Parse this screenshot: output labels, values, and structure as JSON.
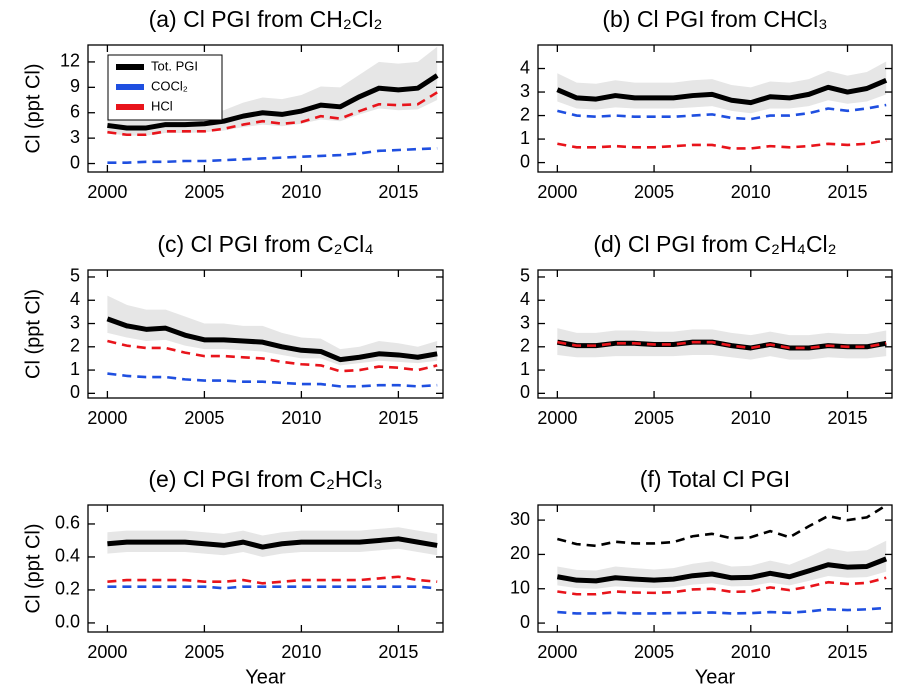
{
  "chart_data": [
    {
      "type": "line",
      "title": "(a) Cl PGI from CH₂Cl₂",
      "ylabel": "Cl (ppt Cl)",
      "legend": "upper left",
      "x": [
        2000,
        2001,
        2002,
        2003,
        2004,
        2005,
        2006,
        2007,
        2008,
        2009,
        2010,
        2011,
        2012,
        2013,
        2014,
        2015,
        2016,
        2017
      ],
      "xlim": [
        1999,
        2017.3
      ],
      "xticks": [
        2000,
        2005,
        2010,
        2015
      ],
      "ylim": [
        -1,
        14
      ],
      "yticks": [
        0,
        3,
        6,
        9,
        12
      ],
      "band": {
        "color": "#e6e6e6",
        "lower": [
          3.6,
          3.3,
          3.3,
          3.6,
          3.6,
          3.7,
          3.9,
          4.3,
          4.6,
          4.4,
          4.7,
          5.2,
          5.0,
          5.8,
          6.5,
          6.3,
          6.4,
          7.5
        ],
        "upper": [
          5.6,
          5.2,
          5.3,
          5.8,
          5.8,
          6.0,
          6.3,
          7.2,
          7.8,
          7.6,
          8.1,
          9.1,
          9.0,
          10.5,
          12.0,
          11.8,
          12.0,
          13.8
        ]
      },
      "series": [
        {
          "name": "Tot. PGI",
          "color": "#000000",
          "linestyle": "solid",
          "values": [
            4.5,
            4.2,
            4.2,
            4.6,
            4.6,
            4.7,
            5.0,
            5.6,
            6.0,
            5.8,
            6.2,
            6.9,
            6.7,
            7.9,
            8.9,
            8.7,
            8.9,
            10.4
          ]
        },
        {
          "name": "COCl₂",
          "color": "#1f4fe0",
          "linestyle": "dashed",
          "values": [
            0.1,
            0.1,
            0.2,
            0.2,
            0.3,
            0.3,
            0.4,
            0.5,
            0.6,
            0.7,
            0.8,
            0.9,
            1.0,
            1.2,
            1.5,
            1.6,
            1.7,
            1.8
          ]
        },
        {
          "name": "HCl",
          "color": "#e8141b",
          "linestyle": "dashed",
          "values": [
            3.7,
            3.4,
            3.4,
            3.8,
            3.8,
            3.8,
            4.1,
            4.6,
            5.0,
            4.7,
            4.9,
            5.6,
            5.3,
            6.2,
            7.0,
            6.9,
            7.0,
            8.4
          ]
        }
      ]
    },
    {
      "type": "line",
      "title": "(b) Cl PGI from CHCl₃",
      "x": [
        2000,
        2001,
        2002,
        2003,
        2004,
        2005,
        2006,
        2007,
        2008,
        2009,
        2010,
        2011,
        2012,
        2013,
        2014,
        2015,
        2016,
        2017
      ],
      "xlim": [
        1999,
        2017.3
      ],
      "xticks": [
        2000,
        2005,
        2010,
        2015
      ],
      "ylim": [
        -0.4,
        5
      ],
      "yticks": [
        0,
        1,
        2,
        3,
        4
      ],
      "band": {
        "color": "#e6e6e6",
        "lower": [
          2.6,
          2.3,
          2.25,
          2.35,
          2.3,
          2.3,
          2.3,
          2.35,
          2.4,
          2.2,
          2.1,
          2.3,
          2.3,
          2.4,
          2.65,
          2.5,
          2.6,
          2.9
        ],
        "upper": [
          3.8,
          3.4,
          3.35,
          3.5,
          3.4,
          3.4,
          3.4,
          3.5,
          3.55,
          3.3,
          3.2,
          3.45,
          3.4,
          3.55,
          3.9,
          3.7,
          3.85,
          4.3
        ]
      },
      "series": [
        {
          "color": "#000000",
          "linestyle": "solid",
          "values": [
            3.1,
            2.75,
            2.7,
            2.85,
            2.75,
            2.75,
            2.75,
            2.85,
            2.9,
            2.65,
            2.55,
            2.8,
            2.75,
            2.9,
            3.2,
            3.0,
            3.15,
            3.5
          ]
        },
        {
          "color": "#1f4fe0",
          "linestyle": "dashed",
          "values": [
            2.2,
            2.0,
            1.95,
            2.0,
            1.95,
            1.95,
            1.95,
            2.0,
            2.05,
            1.9,
            1.85,
            2.0,
            2.0,
            2.1,
            2.3,
            2.2,
            2.3,
            2.45
          ]
        },
        {
          "color": "#e8141b",
          "linestyle": "dashed",
          "values": [
            0.8,
            0.65,
            0.65,
            0.7,
            0.65,
            0.65,
            0.7,
            0.75,
            0.75,
            0.6,
            0.6,
            0.7,
            0.65,
            0.7,
            0.8,
            0.75,
            0.8,
            0.95
          ]
        }
      ]
    },
    {
      "type": "line",
      "title": "(c) Cl PGI from C₂Cl₄",
      "ylabel": "Cl (ppt Cl)",
      "x": [
        2000,
        2001,
        2002,
        2003,
        2004,
        2005,
        2006,
        2007,
        2008,
        2009,
        2010,
        2011,
        2012,
        2013,
        2014,
        2015,
        2016,
        2017
      ],
      "xlim": [
        1999,
        2017.3
      ],
      "xticks": [
        2000,
        2005,
        2010,
        2015
      ],
      "ylim": [
        -0.2,
        5.3
      ],
      "yticks": [
        0,
        1,
        2,
        3,
        4,
        5
      ],
      "band": {
        "color": "#e6e6e6",
        "lower": [
          2.6,
          2.4,
          2.25,
          2.3,
          2.05,
          1.9,
          1.9,
          1.85,
          1.8,
          1.65,
          1.5,
          1.5,
          1.2,
          1.3,
          1.4,
          1.35,
          1.3,
          1.4
        ],
        "upper": [
          4.2,
          3.8,
          3.6,
          3.6,
          3.3,
          3.0,
          3.0,
          2.9,
          2.9,
          2.6,
          2.4,
          2.35,
          1.9,
          2.0,
          2.25,
          2.15,
          2.0,
          2.25
        ]
      },
      "series": [
        {
          "color": "#000000",
          "linestyle": "solid",
          "values": [
            3.2,
            2.9,
            2.75,
            2.8,
            2.5,
            2.3,
            2.3,
            2.25,
            2.2,
            2.0,
            1.85,
            1.8,
            1.45,
            1.55,
            1.7,
            1.65,
            1.55,
            1.7
          ]
        },
        {
          "color": "#1f4fe0",
          "linestyle": "dashed",
          "values": [
            0.85,
            0.75,
            0.7,
            0.7,
            0.6,
            0.55,
            0.55,
            0.5,
            0.5,
            0.45,
            0.4,
            0.4,
            0.3,
            0.3,
            0.35,
            0.35,
            0.3,
            0.35
          ]
        },
        {
          "color": "#e8141b",
          "linestyle": "dashed",
          "values": [
            2.25,
            2.05,
            1.95,
            1.95,
            1.75,
            1.6,
            1.6,
            1.55,
            1.5,
            1.35,
            1.25,
            1.2,
            0.95,
            1.0,
            1.15,
            1.1,
            1.0,
            1.2
          ]
        }
      ]
    },
    {
      "type": "line",
      "title": "(d) Cl PGI from C₂H₄Cl₂",
      "x": [
        2000,
        2001,
        2002,
        2003,
        2004,
        2005,
        2006,
        2007,
        2008,
        2009,
        2010,
        2011,
        2012,
        2013,
        2014,
        2015,
        2016,
        2017
      ],
      "xlim": [
        1999,
        2017.3
      ],
      "xticks": [
        2000,
        2005,
        2010,
        2015
      ],
      "ylim": [
        -0.2,
        5.3
      ],
      "yticks": [
        0,
        1,
        2,
        3,
        4,
        5
      ],
      "band": {
        "color": "#e6e6e6",
        "lower": [
          1.65,
          1.55,
          1.55,
          1.6,
          1.6,
          1.6,
          1.6,
          1.65,
          1.65,
          1.55,
          1.45,
          1.6,
          1.45,
          1.45,
          1.55,
          1.5,
          1.5,
          1.6
        ],
        "upper": [
          2.8,
          2.6,
          2.6,
          2.7,
          2.7,
          2.65,
          2.65,
          2.75,
          2.75,
          2.6,
          2.5,
          2.65,
          2.5,
          2.5,
          2.6,
          2.55,
          2.55,
          2.7
        ]
      },
      "series": [
        {
          "color": "#000000",
          "linestyle": "solid",
          "values": [
            2.2,
            2.05,
            2.05,
            2.15,
            2.15,
            2.1,
            2.1,
            2.2,
            2.2,
            2.05,
            1.95,
            2.1,
            1.95,
            1.95,
            2.05,
            2.0,
            2.0,
            2.15
          ]
        },
        {
          "color": "#e8141b",
          "linestyle": "dashed",
          "values": [
            2.2,
            2.05,
            2.05,
            2.15,
            2.15,
            2.1,
            2.1,
            2.2,
            2.2,
            2.05,
            1.95,
            2.1,
            1.95,
            1.95,
            2.05,
            2.0,
            2.0,
            2.15
          ]
        }
      ]
    },
    {
      "type": "line",
      "title": "(e) Cl PGI from C₂HCl₃",
      "ylabel": "Cl (ppt Cl)",
      "xlabel": "Year",
      "x": [
        2000,
        2001,
        2002,
        2003,
        2004,
        2005,
        2006,
        2007,
        2008,
        2009,
        2010,
        2011,
        2012,
        2013,
        2014,
        2015,
        2016,
        2017
      ],
      "xlim": [
        1999,
        2017.3
      ],
      "xticks": [
        2000,
        2005,
        2010,
        2015
      ],
      "ylim": [
        -0.055,
        0.715
      ],
      "yticks": [
        {
          "value": 0,
          "label": "0.0"
        },
        0.2,
        0.4,
        0.6
      ],
      "band": {
        "color": "#e6e6e6",
        "lower": [
          0.42,
          0.43,
          0.43,
          0.43,
          0.43,
          0.42,
          0.41,
          0.43,
          0.4,
          0.42,
          0.43,
          0.43,
          0.43,
          0.43,
          0.44,
          0.45,
          0.43,
          0.41
        ],
        "upper": [
          0.55,
          0.56,
          0.56,
          0.56,
          0.56,
          0.55,
          0.54,
          0.56,
          0.53,
          0.55,
          0.56,
          0.56,
          0.56,
          0.56,
          0.57,
          0.58,
          0.56,
          0.54
        ]
      },
      "series": [
        {
          "color": "#000000",
          "linestyle": "solid",
          "values": [
            0.48,
            0.49,
            0.49,
            0.49,
            0.49,
            0.48,
            0.47,
            0.49,
            0.46,
            0.48,
            0.49,
            0.49,
            0.49,
            0.49,
            0.5,
            0.51,
            0.49,
            0.47
          ]
        },
        {
          "color": "#1f4fe0",
          "linestyle": "dashed",
          "values": [
            0.22,
            0.22,
            0.22,
            0.22,
            0.22,
            0.22,
            0.21,
            0.22,
            0.22,
            0.22,
            0.22,
            0.22,
            0.22,
            0.22,
            0.22,
            0.22,
            0.22,
            0.21
          ]
        },
        {
          "color": "#e8141b",
          "linestyle": "dashed",
          "values": [
            0.25,
            0.26,
            0.26,
            0.26,
            0.26,
            0.25,
            0.25,
            0.26,
            0.24,
            0.25,
            0.26,
            0.26,
            0.26,
            0.26,
            0.27,
            0.28,
            0.26,
            0.25
          ]
        }
      ]
    },
    {
      "type": "line",
      "title": "(f) Total Cl PGI",
      "xlabel": "Year",
      "x": [
        2000,
        2001,
        2002,
        2003,
        2004,
        2005,
        2006,
        2007,
        2008,
        2009,
        2010,
        2011,
        2012,
        2013,
        2014,
        2015,
        2016,
        2017
      ],
      "xlim": [
        1999,
        2017.3
      ],
      "xticks": [
        2000,
        2005,
        2010,
        2015
      ],
      "ylim": [
        -2.6,
        34.4
      ],
      "yticks": [
        0,
        10,
        20,
        30
      ],
      "band": {
        "color": "#e6e6e6",
        "lower": [
          11,
          10.2,
          10,
          10.7,
          10.4,
          10.2,
          10.4,
          11.2,
          11.6,
          10.7,
          10.8,
          11.8,
          11,
          12.3,
          13.7,
          13.2,
          13.4,
          15
        ],
        "upper": [
          16.5,
          15.5,
          15.3,
          16.5,
          16,
          15.6,
          16,
          17.3,
          18,
          16.5,
          16.7,
          18.2,
          17,
          19.3,
          21.8,
          20.8,
          21.2,
          24
        ]
      },
      "series": [
        {
          "color": "#000000",
          "linestyle": "solid",
          "values": [
            13.5,
            12.5,
            12.3,
            13.2,
            12.8,
            12.5,
            12.8,
            13.8,
            14.3,
            13.2,
            13.3,
            14.5,
            13.5,
            15.2,
            17.0,
            16.3,
            16.5,
            18.7
          ]
        },
        {
          "color": "#1f4fe0",
          "linestyle": "dashed",
          "values": [
            3.2,
            2.8,
            2.8,
            3.0,
            2.8,
            2.8,
            2.9,
            3.0,
            3.1,
            2.8,
            2.9,
            3.2,
            3.0,
            3.4,
            4.0,
            3.8,
            4.0,
            4.4
          ]
        },
        {
          "color": "#e8141b",
          "linestyle": "dashed",
          "values": [
            9.2,
            8.4,
            8.4,
            9.2,
            8.9,
            8.8,
            9.0,
            9.8,
            10.0,
            9.1,
            9.2,
            10.4,
            9.6,
            10.6,
            11.9,
            11.4,
            11.7,
            13.2
          ]
        },
        {
          "color": "#000000",
          "linestyle": "dashed",
          "values": [
            24.5,
            23,
            22.5,
            23.7,
            23.2,
            23.2,
            23.6,
            25.3,
            26.0,
            24.7,
            25.0,
            26.8,
            25.0,
            28.2,
            31.2,
            30.0,
            30.8,
            34.3
          ]
        }
      ]
    }
  ]
}
